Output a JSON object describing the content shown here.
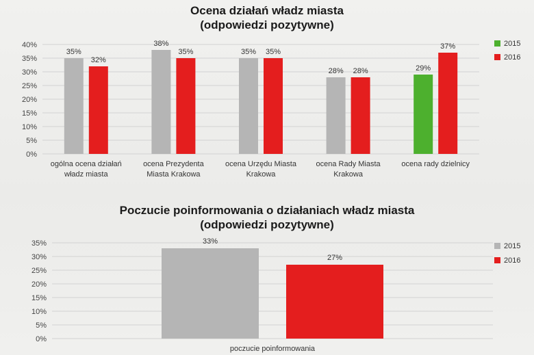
{
  "chart_data": [
    {
      "type": "bar",
      "title": "Ocena działań władz miasta",
      "subtitle": "(odpowiedzi pozytywne)",
      "categories": [
        [
          "ogólna ocena działań",
          "władz miasta"
        ],
        [
          "ocena Prezydenta",
          "Miasta Krakowa"
        ],
        [
          "ocena Urzędu Miasta",
          "Krakowa"
        ],
        [
          "ocena Rady Miasta",
          "Krakowa"
        ],
        [
          "ocena rady dzielnicy"
        ]
      ],
      "series": [
        {
          "name": "2015",
          "values": [
            35,
            38,
            35,
            28,
            29
          ],
          "labels": [
            "35%",
            "38%",
            "35%",
            "28%",
            "29%"
          ]
        },
        {
          "name": "2016",
          "values": [
            32,
            35,
            35,
            28,
            37
          ],
          "labels": [
            "32%",
            "35%",
            "35%",
            "28%",
            "37%"
          ]
        }
      ],
      "bar_colors_2015": [
        "#b5b5b5",
        "#b5b5b5",
        "#b5b5b5",
        "#b5b5b5",
        "#4db02e"
      ],
      "ylim": [
        0,
        40
      ],
      "yticks": [
        "0%",
        "5%",
        "10%",
        "15%",
        "20%",
        "25%",
        "30%",
        "35%",
        "40%"
      ],
      "legend": [
        {
          "name": "2015",
          "color": "#4db02e"
        },
        {
          "name": "2016",
          "color": "#e41e1e"
        }
      ],
      "legend_position": "right",
      "grid": true
    },
    {
      "type": "bar",
      "title": "Poczucie poinformowania o działaniach władz miasta",
      "subtitle": "(odpowiedzi pozytywne)",
      "categories": [
        [
          "poczucie poinformowania"
        ]
      ],
      "series": [
        {
          "name": "2015",
          "values": [
            33
          ],
          "labels": [
            "33%"
          ]
        },
        {
          "name": "2016",
          "values": [
            27
          ],
          "labels": [
            "27%"
          ]
        }
      ],
      "bar_colors_2015": [
        "#b5b5b5"
      ],
      "ylim": [
        0,
        35
      ],
      "yticks": [
        "0%",
        "5%",
        "10%",
        "15%",
        "20%",
        "25%",
        "30%",
        "35%"
      ],
      "legend": [
        {
          "name": "2015",
          "color": "#b5b5b5"
        },
        {
          "name": "2016",
          "color": "#e41e1e"
        }
      ],
      "legend_position": "right",
      "grid": true
    }
  ],
  "colors": {
    "grey": "#b5b5b5",
    "red": "#e41e1e",
    "green": "#4db02e",
    "grid": "#d2d2d2"
  }
}
